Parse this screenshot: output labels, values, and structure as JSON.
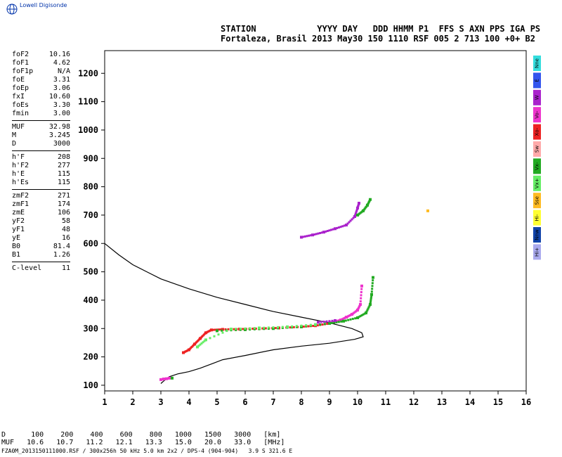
{
  "logo": {
    "text": "Lowell Digisonde",
    "icon": "globe-icon"
  },
  "header": {
    "line1": "STATION            YYYY DAY   DDD HHMM P1  FFS S AXN PPS IGA PS",
    "line2": "Fortaleza, Brasil 2013 May30 150 1110 RSF 005 2 713 100 +0+ B2"
  },
  "params": {
    "group1": [
      {
        "label": "foF2",
        "value": "10.16"
      },
      {
        "label": "foF1",
        "value": "4.62"
      },
      {
        "label": "foF1p",
        "value": "N/A"
      },
      {
        "label": "foE",
        "value": "3.31"
      },
      {
        "label": "foEp",
        "value": "3.06"
      },
      {
        "label": "fxI",
        "value": "10.60"
      },
      {
        "label": "foEs",
        "value": "3.30"
      },
      {
        "label": "fmin",
        "value": "3.00"
      }
    ],
    "group2": [
      {
        "label": "MUF",
        "value": "32.98"
      },
      {
        "label": "M",
        "value": "3.245"
      },
      {
        "label": "D",
        "value": "3000"
      }
    ],
    "group3": [
      {
        "label": "h'F",
        "value": "208"
      },
      {
        "label": "h'F2",
        "value": "277"
      },
      {
        "label": "h'E",
        "value": "115"
      },
      {
        "label": "h'Es",
        "value": "115"
      }
    ],
    "group4": [
      {
        "label": "zmF2",
        "value": "271"
      },
      {
        "label": "zmF1",
        "value": "174"
      },
      {
        "label": "zmE",
        "value": "106"
      },
      {
        "label": "yF2",
        "value": "58"
      },
      {
        "label": "yF1",
        "value": "48"
      },
      {
        "label": "yE",
        "value": "16"
      },
      {
        "label": "B0",
        "value": "81.4"
      },
      {
        "label": "B1",
        "value": "1.26"
      }
    ],
    "group5": [
      {
        "label": "C-level",
        "value": "11"
      }
    ]
  },
  "legend": [
    {
      "label": "Nne",
      "color": "#33dddd"
    },
    {
      "label": "E",
      "color": "#3355ee"
    },
    {
      "label": "W",
      "color": "#aa22cc"
    },
    {
      "label": "Vo-",
      "color": "#ee33cc"
    },
    {
      "label": "Xo-",
      "color": "#ee2222"
    },
    {
      "label": "Sw",
      "color": "#ffaaaa"
    },
    {
      "label": "Vx-",
      "color": "#22aa22"
    },
    {
      "label": "Vx+",
      "color": "#66ee66"
    },
    {
      "label": "Sse",
      "color": "#ffbb22"
    },
    {
      "label": "Hi-",
      "color": "#ffff33"
    },
    {
      "label": "Nnw",
      "color": "#1144aa"
    },
    {
      "label": "Hi+",
      "color": "#aaaaee"
    }
  ],
  "chart_data": {
    "type": "scatter",
    "xlim": [
      1,
      16
    ],
    "ylim": [
      80,
      1280
    ],
    "xticks": [
      1,
      2,
      3,
      4,
      5,
      6,
      7,
      8,
      9,
      10,
      11,
      12,
      13,
      14,
      15,
      16
    ],
    "yticks": [
      100,
      200,
      300,
      400,
      500,
      600,
      700,
      800,
      900,
      1000,
      1100,
      1200
    ],
    "grid": false,
    "legend_position": "right",
    "profile": {
      "color": "#000000",
      "points": [
        [
          1.0,
          600
        ],
        [
          1.5,
          560
        ],
        [
          2.0,
          525
        ],
        [
          2.5,
          500
        ],
        [
          3.0,
          475
        ],
        [
          4.0,
          440
        ],
        [
          5.0,
          410
        ],
        [
          6.0,
          385
        ],
        [
          7.0,
          360
        ],
        [
          8.0,
          340
        ],
        [
          9.0,
          320
        ],
        [
          9.8,
          300
        ],
        [
          10.15,
          285
        ],
        [
          10.2,
          271
        ],
        [
          9.9,
          262
        ],
        [
          9.0,
          248
        ],
        [
          8.0,
          238
        ],
        [
          7.0,
          225
        ],
        [
          6.0,
          205
        ],
        [
          5.2,
          190
        ],
        [
          4.8,
          175
        ],
        [
          4.4,
          160
        ],
        [
          4.0,
          148
        ],
        [
          3.6,
          140
        ],
        [
          3.3,
          130
        ],
        [
          3.1,
          115
        ],
        [
          3.0,
          106
        ]
      ]
    },
    "series": [
      {
        "color": "#ee33cc",
        "points": [
          [
            3.0,
            120
          ],
          [
            3.1,
            122
          ],
          [
            3.2,
            123
          ],
          [
            3.3,
            125
          ],
          [
            9.0,
            320
          ],
          [
            9.2,
            325
          ],
          [
            9.4,
            330
          ],
          [
            9.6,
            340
          ],
          [
            9.8,
            350
          ],
          [
            10.0,
            365
          ],
          [
            10.1,
            385
          ],
          [
            10.15,
            450
          ]
        ]
      },
      {
        "color": "#ee2222",
        "points": [
          [
            3.8,
            215
          ],
          [
            4.0,
            225
          ],
          [
            4.2,
            245
          ],
          [
            4.4,
            265
          ],
          [
            4.6,
            285
          ],
          [
            4.8,
            295
          ],
          [
            5.2,
            297
          ],
          [
            5.8,
            298
          ],
          [
            6.5,
            300
          ],
          [
            7.2,
            302
          ],
          [
            8.0,
            306
          ],
          [
            8.5,
            310
          ],
          [
            9.0,
            318
          ]
        ]
      },
      {
        "color": "#22aa22",
        "points": [
          [
            3.4,
            125
          ],
          [
            5.0,
            292
          ],
          [
            6.0,
            296
          ],
          [
            7.0,
            300
          ],
          [
            8.0,
            306
          ],
          [
            9.0,
            318
          ],
          [
            9.5,
            326
          ],
          [
            10.0,
            338
          ],
          [
            10.3,
            355
          ],
          [
            10.45,
            385
          ],
          [
            10.5,
            420
          ],
          [
            10.55,
            480
          ]
        ]
      },
      {
        "color": "#66ee66",
        "points": [
          [
            4.3,
            235
          ],
          [
            4.6,
            260
          ],
          [
            5.5,
            298
          ],
          [
            6.5,
            302
          ],
          [
            7.5,
            306
          ],
          [
            8.5,
            314
          ]
        ]
      },
      {
        "color": "#aa22cc",
        "points": [
          [
            8.0,
            622
          ],
          [
            8.4,
            630
          ],
          [
            8.8,
            640
          ],
          [
            9.2,
            652
          ],
          [
            9.6,
            665
          ],
          [
            9.9,
            695
          ],
          [
            10.0,
            725
          ],
          [
            10.05,
            742
          ],
          [
            8.6,
            322
          ],
          [
            9.2,
            328
          ]
        ]
      },
      {
        "color": "#22aa22",
        "points": [
          [
            10.0,
            700
          ],
          [
            10.2,
            715
          ],
          [
            10.35,
            735
          ],
          [
            10.45,
            755
          ]
        ]
      },
      {
        "color": "#ffbb22",
        "points": [
          [
            12.5,
            715
          ]
        ]
      }
    ]
  },
  "footer": {
    "d_row": "D      100    200    400    600    800   1000   1500   3000   [km]",
    "muf_row": "MUF   10.6   10.7   11.2   12.1   13.3   15.0   20.0   33.0   [MHz]",
    "file_row": "FZA0M_2013150111000.RSF / 300x256h 50 kHz 5.0 km 2x2 / DPS-4 (904-904)   3.9 S 321.6 E"
  }
}
